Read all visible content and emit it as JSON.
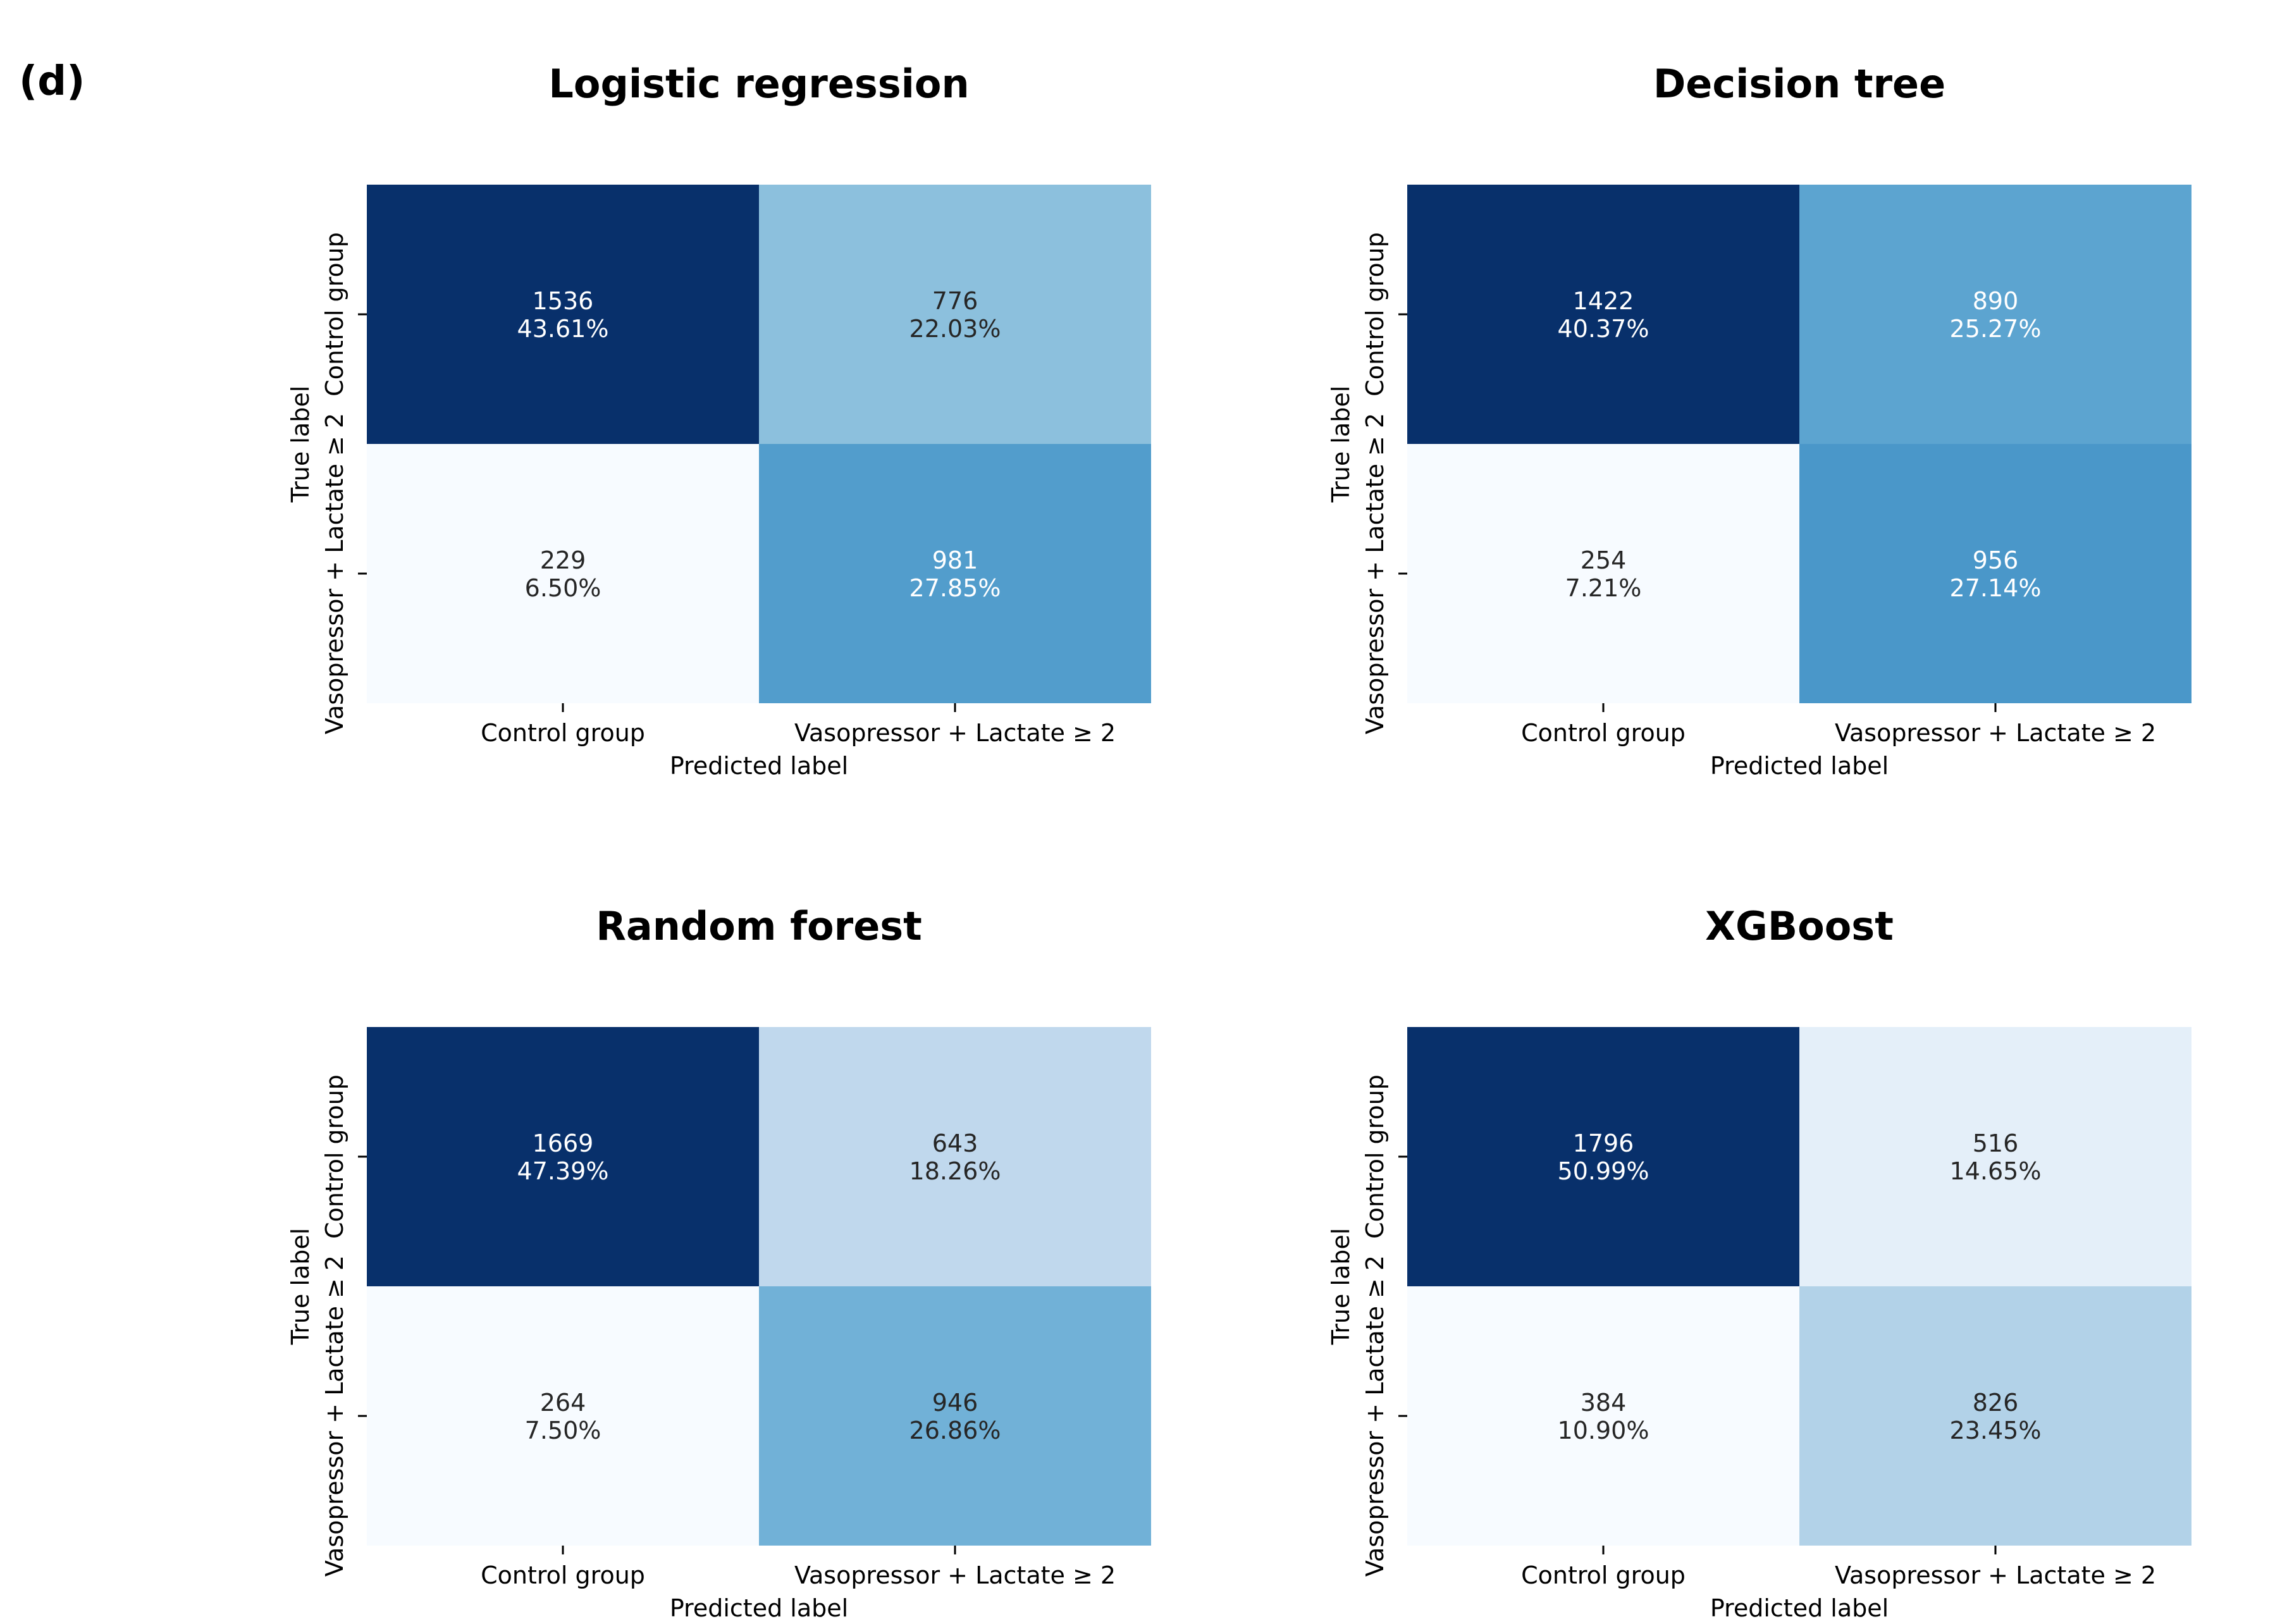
{
  "panel_label": "(d)",
  "chart_data": [
    {
      "type": "heatmap",
      "title": "Logistic regression",
      "xlabel": "Predicted label",
      "ylabel": "True label",
      "x_categories": [
        "Control group",
        "Vasopressor + Lactate ≥ 2"
      ],
      "y_categories": [
        "Control group",
        "Vasopressor + Lactate ≥ 2"
      ],
      "counts": [
        [
          1536,
          776
        ],
        [
          229,
          981
        ]
      ],
      "percents": [
        [
          "43.61%",
          "22.03%"
        ],
        [
          "6.50%",
          "27.85%"
        ]
      ],
      "colormap": "Blues"
    },
    {
      "type": "heatmap",
      "title": "Decision tree",
      "xlabel": "Predicted label",
      "ylabel": "True label",
      "x_categories": [
        "Control group",
        "Vasopressor + Lactate ≥ 2"
      ],
      "y_categories": [
        "Control group",
        "Vasopressor + Lactate ≥ 2"
      ],
      "counts": [
        [
          1422,
          890
        ],
        [
          254,
          956
        ]
      ],
      "percents": [
        [
          "40.37%",
          "25.27%"
        ],
        [
          "7.21%",
          "27.14%"
        ]
      ],
      "colormap": "Blues"
    },
    {
      "type": "heatmap",
      "title": "Random forest",
      "xlabel": "Predicted label",
      "ylabel": "True label",
      "x_categories": [
        "Control group",
        "Vasopressor + Lactate ≥ 2"
      ],
      "y_categories": [
        "Control group",
        "Vasopressor + Lactate ≥ 2"
      ],
      "counts": [
        [
          1669,
          643
        ],
        [
          264,
          946
        ]
      ],
      "percents": [
        [
          "47.39%",
          "18.26%"
        ],
        [
          "7.50%",
          "26.86%"
        ]
      ],
      "colormap": "Blues"
    },
    {
      "type": "heatmap",
      "title": "XGBoost",
      "xlabel": "Predicted label",
      "ylabel": "True label",
      "x_categories": [
        "Control group",
        "Vasopressor + Lactate ≥ 2"
      ],
      "y_categories": [
        "Control group",
        "Vasopressor + Lactate ≥ 2"
      ],
      "counts": [
        [
          1796,
          516
        ],
        [
          384,
          826
        ]
      ],
      "percents": [
        [
          "50.99%",
          "14.65%"
        ],
        [
          "10.90%",
          "23.45%"
        ]
      ],
      "colormap": "Blues"
    }
  ]
}
